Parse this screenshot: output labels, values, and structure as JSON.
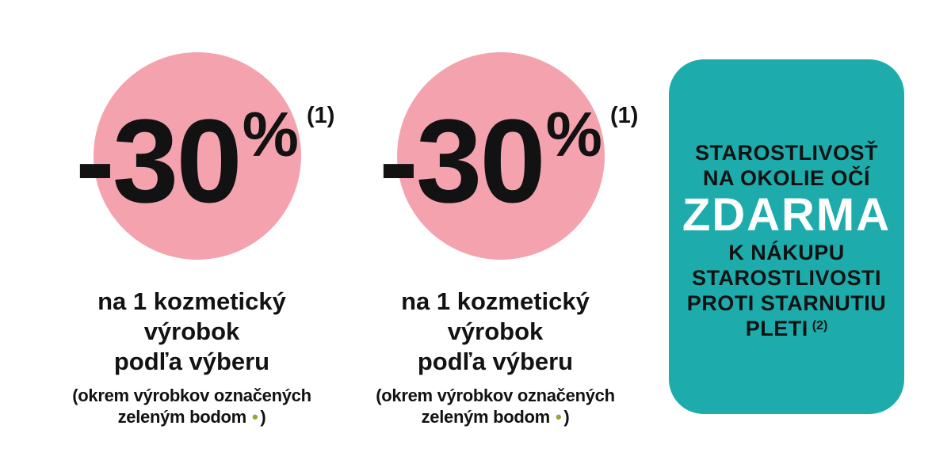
{
  "colors": {
    "page_bg": "#FFFFFF",
    "circle_pink": "#F4A3AE",
    "card_teal": "#1DACAB",
    "bullet_olive": "#9EA03B",
    "text_black": "#121212",
    "highlight_white": "#FFFFFF"
  },
  "promos": [
    {
      "value": "-30",
      "percent_sign": "%",
      "footnote_marker": "(1)",
      "description_lines": [
        "na 1 kozmetický",
        "výrobok",
        "podľa výberu"
      ],
      "note_line_1": "(okrem výrobkov označených",
      "note_line_2_text": "zeleným bodom",
      "note_bullet": "•",
      "note_line_2_close": ")"
    },
    {
      "value": "-30",
      "percent_sign": "%",
      "footnote_marker": "(1)",
      "description_lines": [
        "na 1 kozmetický",
        "výrobok",
        "podľa výberu"
      ],
      "note_line_1": "(okrem výrobkov označených",
      "note_line_2_text": "zeleným bodom",
      "note_bullet": "•",
      "note_line_2_close": ")"
    }
  ],
  "free_gift_card": {
    "intro_lines": [
      "STAROSTLIVOSŤ",
      "NA OKOLIE OČÍ"
    ],
    "highlight": "ZDARMA",
    "detail_lines": [
      "K NÁKUPU",
      "STAROSTLIVOSTI",
      "PROTI STARNUTIU"
    ],
    "last_line": "PLETI",
    "footnote_marker": "(2)"
  }
}
